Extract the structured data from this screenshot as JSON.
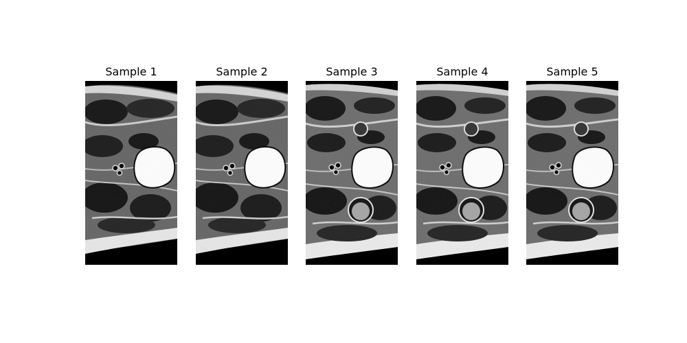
{
  "figure": {
    "panels": [
      {
        "title": "Sample 1"
      },
      {
        "title": "Sample 2"
      },
      {
        "title": "Sample 3"
      },
      {
        "title": "Sample 4"
      },
      {
        "title": "Sample 5"
      }
    ]
  }
}
